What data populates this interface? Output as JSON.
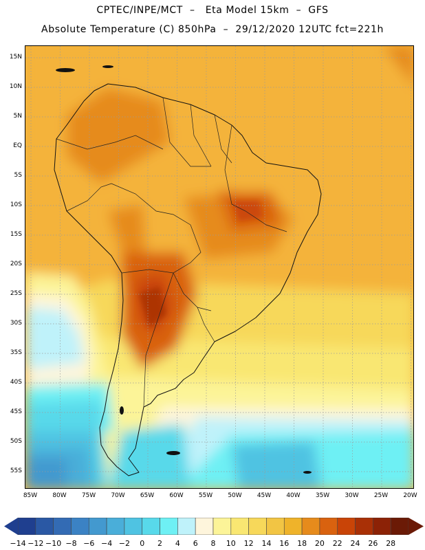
{
  "header": {
    "title_line1": "CPTEC/INPE/MCT  –   Eta Model 15km  –  GFS",
    "title_line2": "Absolute Temperature (C) 850hPa  –  29/12/2020 12UTC fct=221h"
  },
  "map": {
    "latitude_labels": [
      "15N",
      "10N",
      "5N",
      "EQ",
      "5S",
      "10S",
      "15S",
      "20S",
      "25S",
      "30S",
      "35S",
      "40S",
      "45S",
      "50S",
      "55S"
    ],
    "longitude_labels": [
      "85W",
      "80W",
      "75W",
      "70W",
      "65W",
      "60W",
      "55W",
      "50W",
      "45W",
      "40W",
      "35W",
      "30W",
      "25W",
      "20W"
    ],
    "boundary_color": "#111111",
    "gridline_color": "#9a9a9a"
  },
  "legend": {
    "unit": "C",
    "labels": [
      "-14",
      "-12",
      "-10",
      "-8",
      "-6",
      "-4",
      "-2",
      "0",
      "2",
      "4",
      "6",
      "8",
      "10",
      "12",
      "14",
      "16",
      "18",
      "20",
      "22",
      "24",
      "26",
      "28"
    ],
    "colors": [
      "#1f3f8f",
      "#2a58a4",
      "#336bb4",
      "#3b82c4",
      "#4399cf",
      "#4aaed9",
      "#4fc3e2",
      "#58d9ea",
      "#6ef0f4",
      "#bff2fa",
      "#fef5dc",
      "#fcf498",
      "#f9e772",
      "#f7d85a",
      "#f2c544",
      "#efb32a",
      "#e68b1c",
      "#d9620f",
      "#c94407",
      "#a93006",
      "#8c2206",
      "#6b1a06"
    ]
  }
}
